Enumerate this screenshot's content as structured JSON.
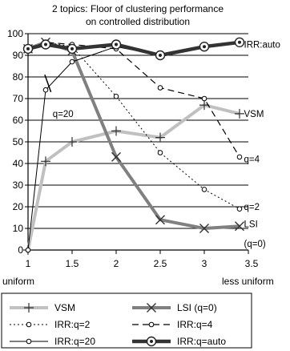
{
  "chart_data": {
    "type": "line",
    "title": [
      "2 topics: Floor of clustering performance",
      "on controlled distribution"
    ],
    "xlim": [
      1,
      3.5
    ],
    "ylim": [
      0,
      100
    ],
    "x_ticks": [
      {
        "value": 1,
        "label": "1"
      },
      {
        "value": 1.5,
        "label": "1.5"
      },
      {
        "value": 2,
        "label": "2"
      },
      {
        "value": 2.5,
        "label": "2.5"
      },
      {
        "value": 3,
        "label": "3"
      },
      {
        "value": 3.5,
        "label": "3.5"
      }
    ],
    "x_end_labels": {
      "left": "uniform",
      "right": "less uniform"
    },
    "y_ticks": [
      0,
      10,
      20,
      30,
      40,
      50,
      60,
      70,
      80,
      90,
      100
    ],
    "grid": "horizontal",
    "series": [
      {
        "name": "VSM",
        "color": "#c0c0c0",
        "style": "solid-thick",
        "marker": "plus",
        "x": [
          1,
          1.2,
          1.5,
          2,
          2.5,
          3,
          3.4
        ],
        "y": [
          0,
          41,
          50,
          55,
          52,
          67,
          63
        ]
      },
      {
        "name": "LSI (q=0)",
        "color": "#808080",
        "style": "solid-thick",
        "marker": "x",
        "x": [
          1,
          1.2,
          1.5,
          2,
          2.5,
          3,
          3.4
        ],
        "y": [
          93,
          96,
          92,
          43,
          14,
          10,
          11
        ]
      },
      {
        "name": "IRR:q=2",
        "color": "#000000",
        "style": "dotted",
        "marker": "circle",
        "x": [
          1,
          1.2,
          1.5,
          2,
          2.5,
          3,
          3.4
        ],
        "y": [
          93,
          96,
          94,
          71,
          45,
          28,
          19
        ]
      },
      {
        "name": "IRR:q=4",
        "color": "#000000",
        "style": "dashed",
        "marker": "circle",
        "x": [
          1,
          1.2,
          1.5,
          2,
          2.5,
          3,
          3.4
        ],
        "y": [
          93,
          96,
          95,
          93,
          75,
          70,
          43
        ]
      },
      {
        "name": "IRR:q=20",
        "color": "#000000",
        "style": "solid-thin",
        "marker": "circle",
        "x": [
          1,
          1.2,
          1.5,
          2,
          2.5,
          3,
          3.4
        ],
        "y": [
          0,
          74,
          87,
          94,
          90,
          94,
          96
        ]
      },
      {
        "name": "IRR:q=auto",
        "color": "#333333",
        "style": "solid-heavy",
        "marker": "circle-dot",
        "x": [
          1,
          1.2,
          1.5,
          2,
          2.5,
          3,
          3.4
        ],
        "y": [
          93,
          95,
          93,
          95,
          90,
          94,
          96
        ]
      }
    ],
    "annotations": [
      {
        "text": "IRR:auto",
        "x": 3.45,
        "y": 95
      },
      {
        "text": "VSM",
        "x": 3.45,
        "y": 63
      },
      {
        "text": "q=4",
        "x": 3.45,
        "y": 42
      },
      {
        "text": "q=2",
        "x": 3.45,
        "y": 20
      },
      {
        "text": "LSI",
        "x": 3.45,
        "y": 12
      },
      {
        "text": "(q=0)",
        "x": 3.45,
        "y": 3
      },
      {
        "text": "q=20",
        "x": 1.28,
        "y": 63
      }
    ],
    "legend": {
      "position": "bottom",
      "entries": [
        {
          "series": "VSM",
          "label": "VSM"
        },
        {
          "series": "LSI (q=0)",
          "label": "LSI (q=0)"
        },
        {
          "series": "IRR:q=2",
          "label": "IRR:q=2"
        },
        {
          "series": "IRR:q=4",
          "label": "IRR:q=4"
        },
        {
          "series": "IRR:q=20",
          "label": "IRR:q=20"
        },
        {
          "series": "IRR:q=auto",
          "label": "IRR:q=auto"
        }
      ]
    }
  }
}
